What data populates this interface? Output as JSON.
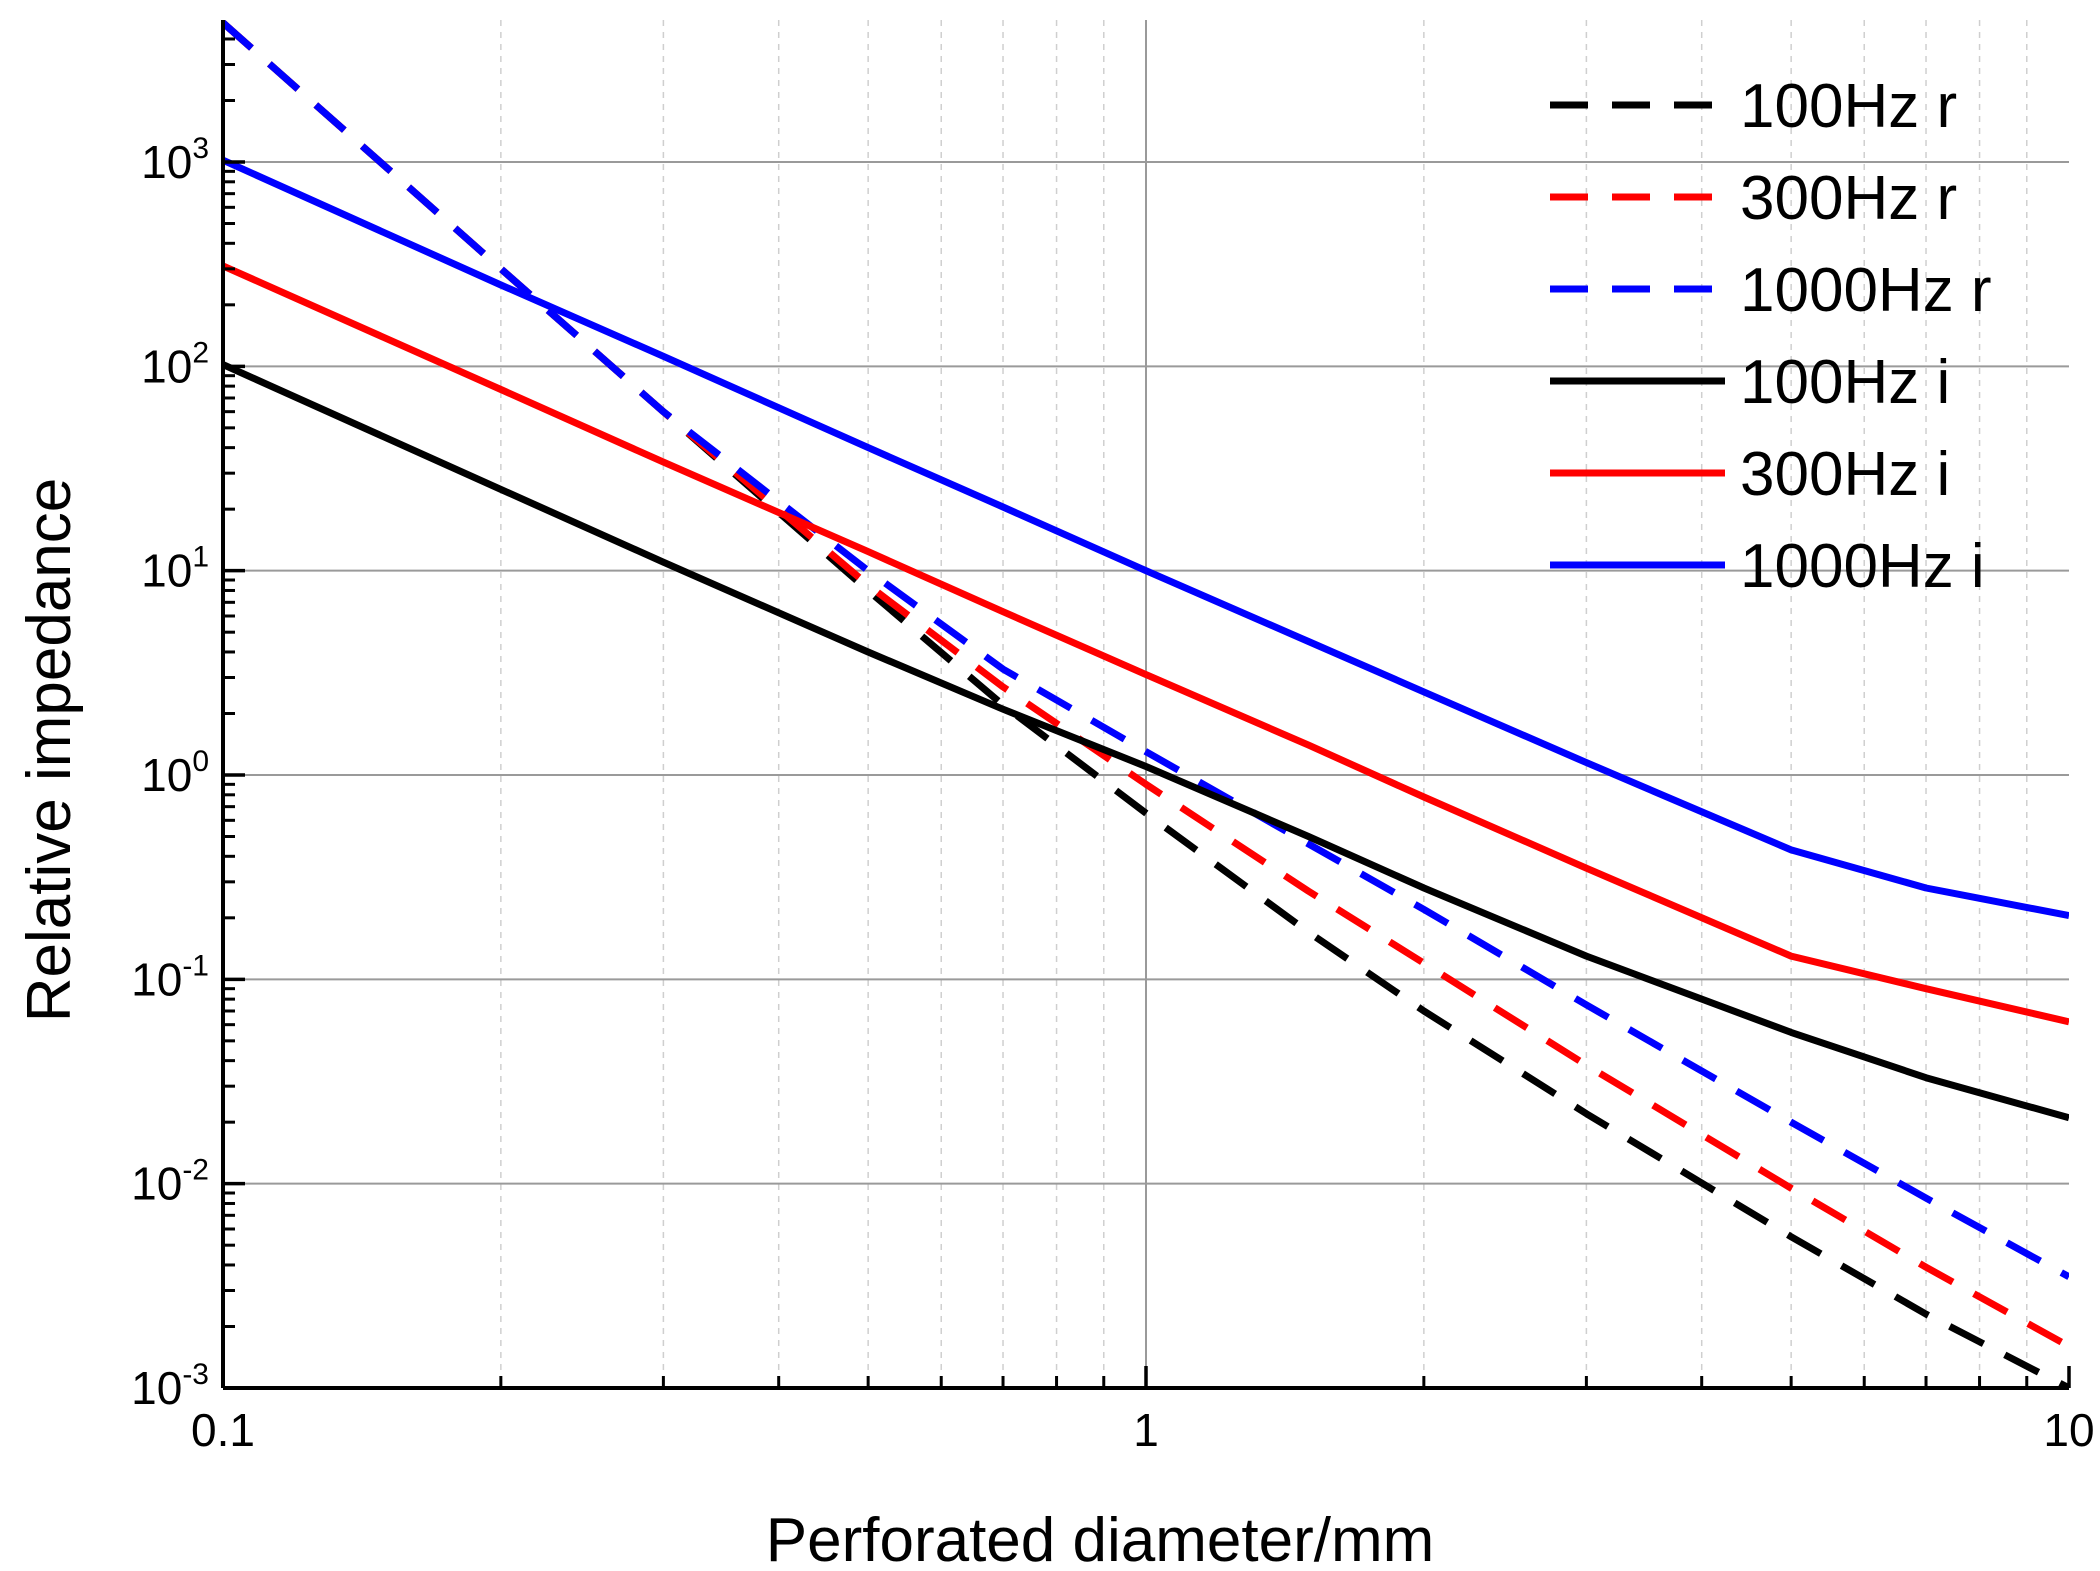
{
  "chart_data": {
    "type": "line",
    "xlabel": "Perforated diameter/mm",
    "ylabel": "Relative impedance",
    "x_scale": "log",
    "y_scale": "log",
    "xlim": [
      0.1,
      10
    ],
    "ylim": [
      0.001,
      5000
    ],
    "grid": true,
    "legend_position": "top-right",
    "x_ticks": [
      {
        "value": 0.1,
        "label": "0.1"
      },
      {
        "value": 1,
        "label": "1"
      },
      {
        "value": 10,
        "label": "10"
      }
    ],
    "y_ticks": [
      {
        "value": 0.001,
        "base": "10",
        "exp": "-3"
      },
      {
        "value": 0.01,
        "base": "10",
        "exp": "-2"
      },
      {
        "value": 0.1,
        "base": "10",
        "exp": "-1"
      },
      {
        "value": 1,
        "base": "10",
        "exp": "0"
      },
      {
        "value": 10,
        "base": "10",
        "exp": "1"
      },
      {
        "value": 100,
        "base": "10",
        "exp": "2"
      },
      {
        "value": 1000,
        "base": "10",
        "exp": "3"
      }
    ],
    "series": [
      {
        "name": "100Hz r",
        "color": "#000000",
        "style": "dashed",
        "x": [
          0.1,
          0.2,
          0.3,
          0.5,
          0.7,
          1,
          1.5,
          2,
          3,
          5,
          7,
          10
        ],
        "y": [
          4800,
          300,
          60,
          8,
          2.2,
          0.65,
          0.17,
          0.07,
          0.022,
          0.0055,
          0.0023,
          0.001
        ]
      },
      {
        "name": "300Hz r",
        "color": "#ff0000",
        "style": "dashed",
        "x": [
          0.1,
          0.2,
          0.3,
          0.5,
          0.7,
          1,
          1.5,
          2,
          3,
          5,
          7,
          10
        ],
        "y": [
          4800,
          300,
          60,
          8.5,
          2.7,
          0.9,
          0.27,
          0.12,
          0.038,
          0.0095,
          0.0039,
          0.0016
        ]
      },
      {
        "name": "1000Hz r",
        "color": "#0000ff",
        "style": "dashed",
        "x": [
          0.1,
          0.2,
          0.3,
          0.5,
          0.7,
          1,
          1.5,
          2,
          3,
          5,
          7,
          10
        ],
        "y": [
          4800,
          300,
          60,
          10,
          3.3,
          1.3,
          0.46,
          0.22,
          0.075,
          0.02,
          0.0085,
          0.0035
        ]
      },
      {
        "name": "100Hz i",
        "color": "#000000",
        "style": "solid",
        "x": [
          0.1,
          0.2,
          0.3,
          0.5,
          0.7,
          1,
          1.5,
          2,
          3,
          5,
          7,
          10
        ],
        "y": [
          102,
          25,
          11,
          4,
          2.1,
          1.1,
          0.5,
          0.28,
          0.13,
          0.055,
          0.033,
          0.021
        ]
      },
      {
        "name": "300Hz i",
        "color": "#ff0000",
        "style": "solid",
        "x": [
          0.1,
          0.2,
          0.3,
          0.5,
          0.7,
          1,
          1.5,
          2,
          3,
          5,
          7,
          10
        ],
        "y": [
          310,
          77,
          34,
          12.4,
          6.3,
          3.1,
          1.4,
          0.78,
          0.35,
          0.13,
          0.09,
          0.062
        ]
      },
      {
        "name": "1000Hz i",
        "color": "#0000ff",
        "style": "solid",
        "x": [
          0.1,
          0.2,
          0.3,
          0.5,
          0.7,
          1,
          1.5,
          2,
          3,
          5,
          7,
          10
        ],
        "y": [
          1020,
          250,
          112,
          40,
          20.5,
          10,
          4.5,
          2.55,
          1.15,
          0.43,
          0.28,
          0.205
        ]
      }
    ]
  }
}
